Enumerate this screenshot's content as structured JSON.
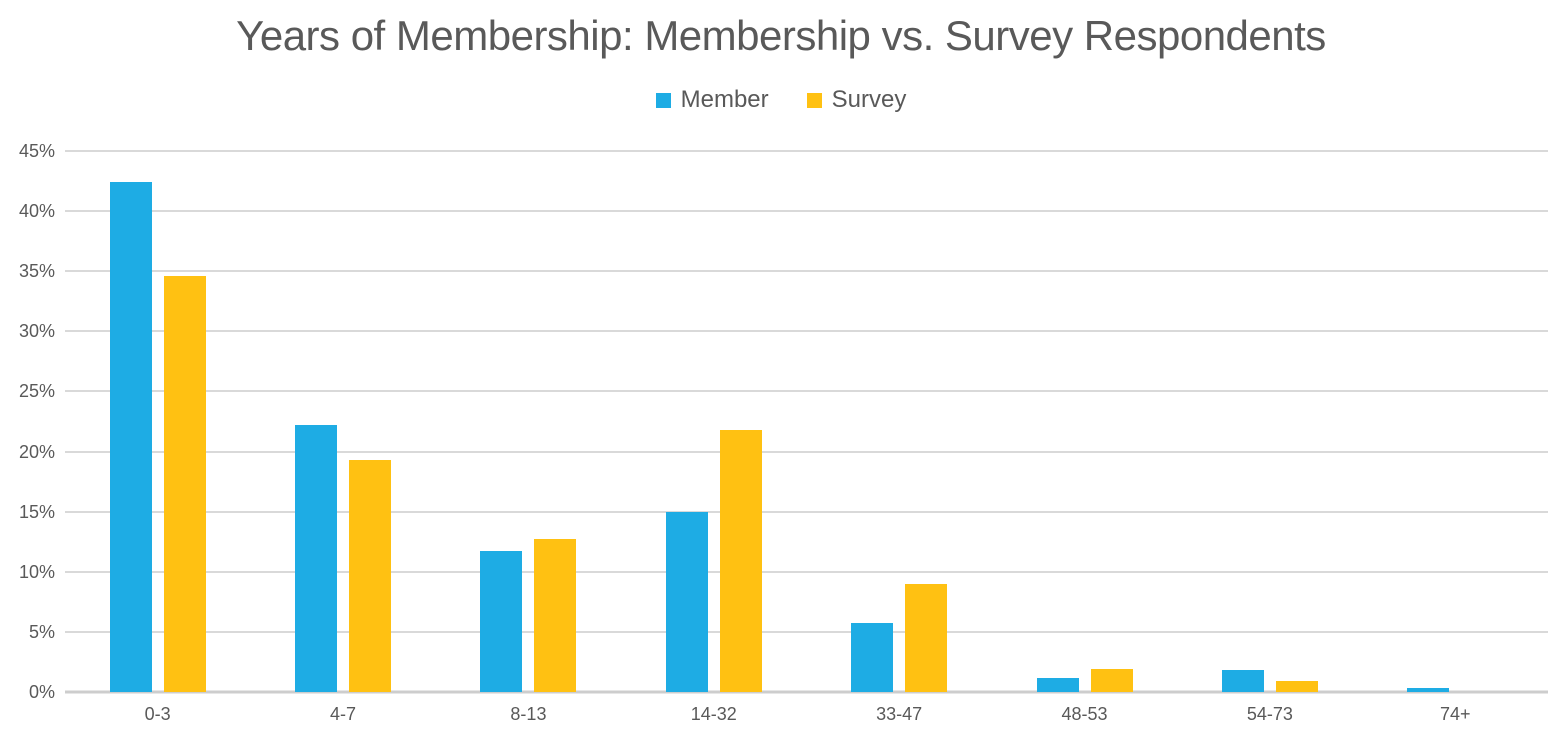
{
  "chart_data": {
    "type": "bar",
    "title": "Years of Membership: Membership vs. Survey Respondents",
    "categories": [
      "0-3",
      "4-7",
      "8-13",
      "14-32",
      "33-47",
      "48-53",
      "54-73",
      "74+"
    ],
    "series": [
      {
        "name": "Member",
        "color": "#1EACE4",
        "values": [
          42.4,
          22.2,
          11.7,
          15.0,
          5.7,
          1.2,
          1.8,
          0.3
        ]
      },
      {
        "name": "Survey",
        "color": "#FFC112",
        "values": [
          34.6,
          19.3,
          12.7,
          21.8,
          9.0,
          1.9,
          0.9,
          0
        ]
      }
    ],
    "xlabel": "",
    "ylabel": "",
    "ylim": [
      0,
      45
    ],
    "ytick_step": 5,
    "ytick_format": "percent",
    "grid": true,
    "legend_position": "top"
  },
  "colors": {
    "text": "#595959",
    "gridline": "#D9D9D9",
    "axis_line": "#CDCDCD",
    "background": "#FFFFFF"
  }
}
